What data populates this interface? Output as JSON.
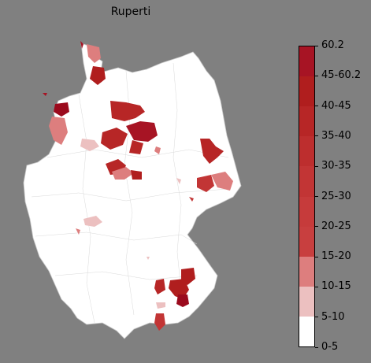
{
  "title": "Ruperti",
  "colorbar": {
    "labels": [
      "0-5",
      "5-10",
      "10-15",
      "15-20",
      "20-25",
      "25-30",
      "30-35",
      "35-40",
      "40-45",
      "45-60.2",
      "60.2"
    ],
    "segment_colors": [
      "#ffffff",
      "#ecc0c0",
      "#dd7e7e",
      "#c83f3f",
      "#c63b3b",
      "#c23535",
      "#bd2e2e",
      "#b72626",
      "#b01e1e",
      "#a71424",
      "#9b0a1d"
    ]
  },
  "map": {
    "background": "#808080",
    "land_color": "#ffffff",
    "border_color": "#c8c8c8"
  }
}
